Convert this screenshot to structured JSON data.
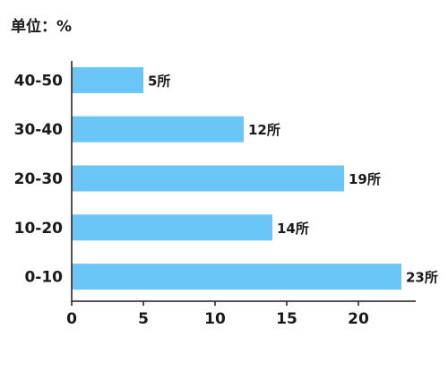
{
  "unit_text": "单位：%",
  "chart_data": {
    "type": "bar",
    "orientation": "horizontal",
    "categories": [
      "0-10",
      "10-20",
      "20-30",
      "30-40",
      "40-50"
    ],
    "values": [
      23,
      14,
      19,
      12,
      5
    ],
    "data_labels": [
      "23所",
      "14所",
      "19所",
      "12所",
      "5所"
    ],
    "x_ticks": [
      0,
      5,
      10,
      15,
      20
    ],
    "xlim": [
      0,
      24
    ],
    "bar_color": "#6ac6f7",
    "axis_color": "#1a1a1a",
    "grid": false,
    "title": "",
    "xlabel": "",
    "ylabel": ""
  }
}
